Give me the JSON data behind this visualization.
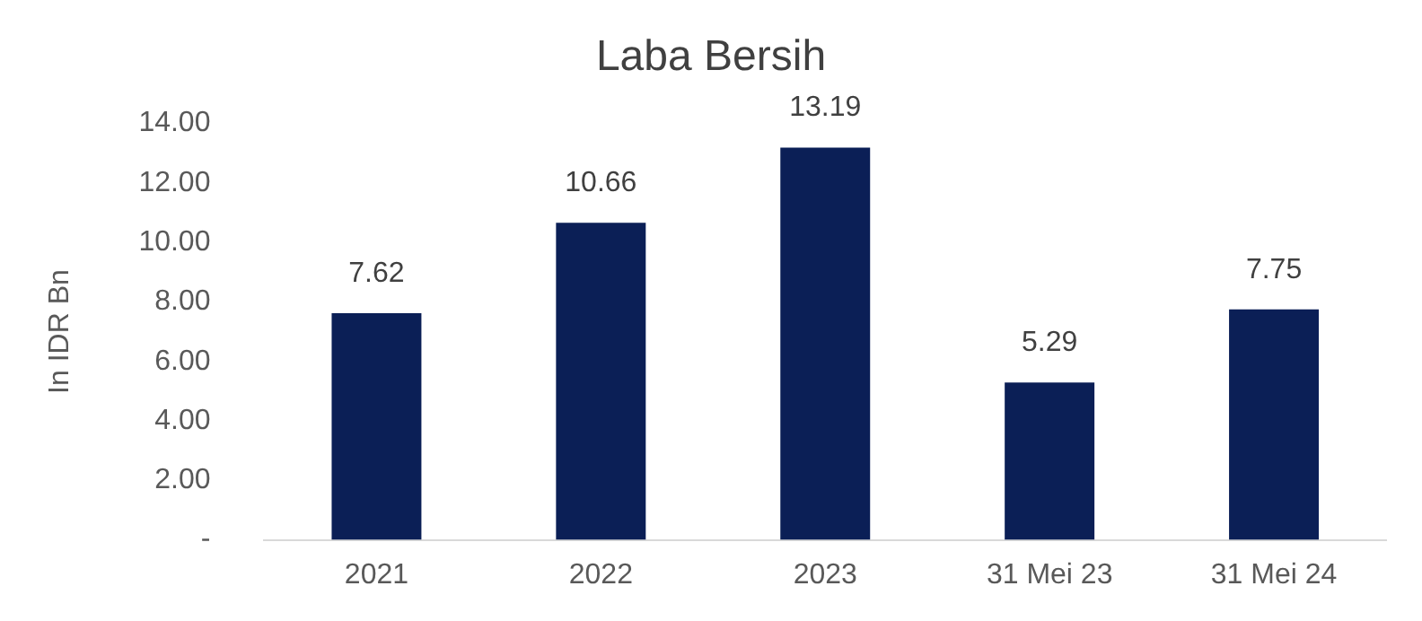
{
  "chart_data": {
    "type": "bar",
    "title": "Laba Bersih",
    "ylabel": "In IDR Bn",
    "categories": [
      "2021",
      "2022",
      "2023",
      "31 Mei 23",
      "31 Mei 24"
    ],
    "values": [
      7.62,
      10.66,
      13.19,
      5.29,
      7.75
    ],
    "color": "#0b1f56",
    "ylim": [
      0,
      14
    ],
    "yticks": [
      {
        "value": 0,
        "label": "-"
      },
      {
        "value": 2,
        "label": "2.00"
      },
      {
        "value": 4,
        "label": "4.00"
      },
      {
        "value": 6,
        "label": "6.00"
      },
      {
        "value": 8,
        "label": "8.00"
      },
      {
        "value": 10,
        "label": "10.00"
      },
      {
        "value": 12,
        "label": "12.00"
      },
      {
        "value": 14,
        "label": "14.00"
      }
    ],
    "grid": false,
    "legend": false,
    "data_labels": true
  }
}
